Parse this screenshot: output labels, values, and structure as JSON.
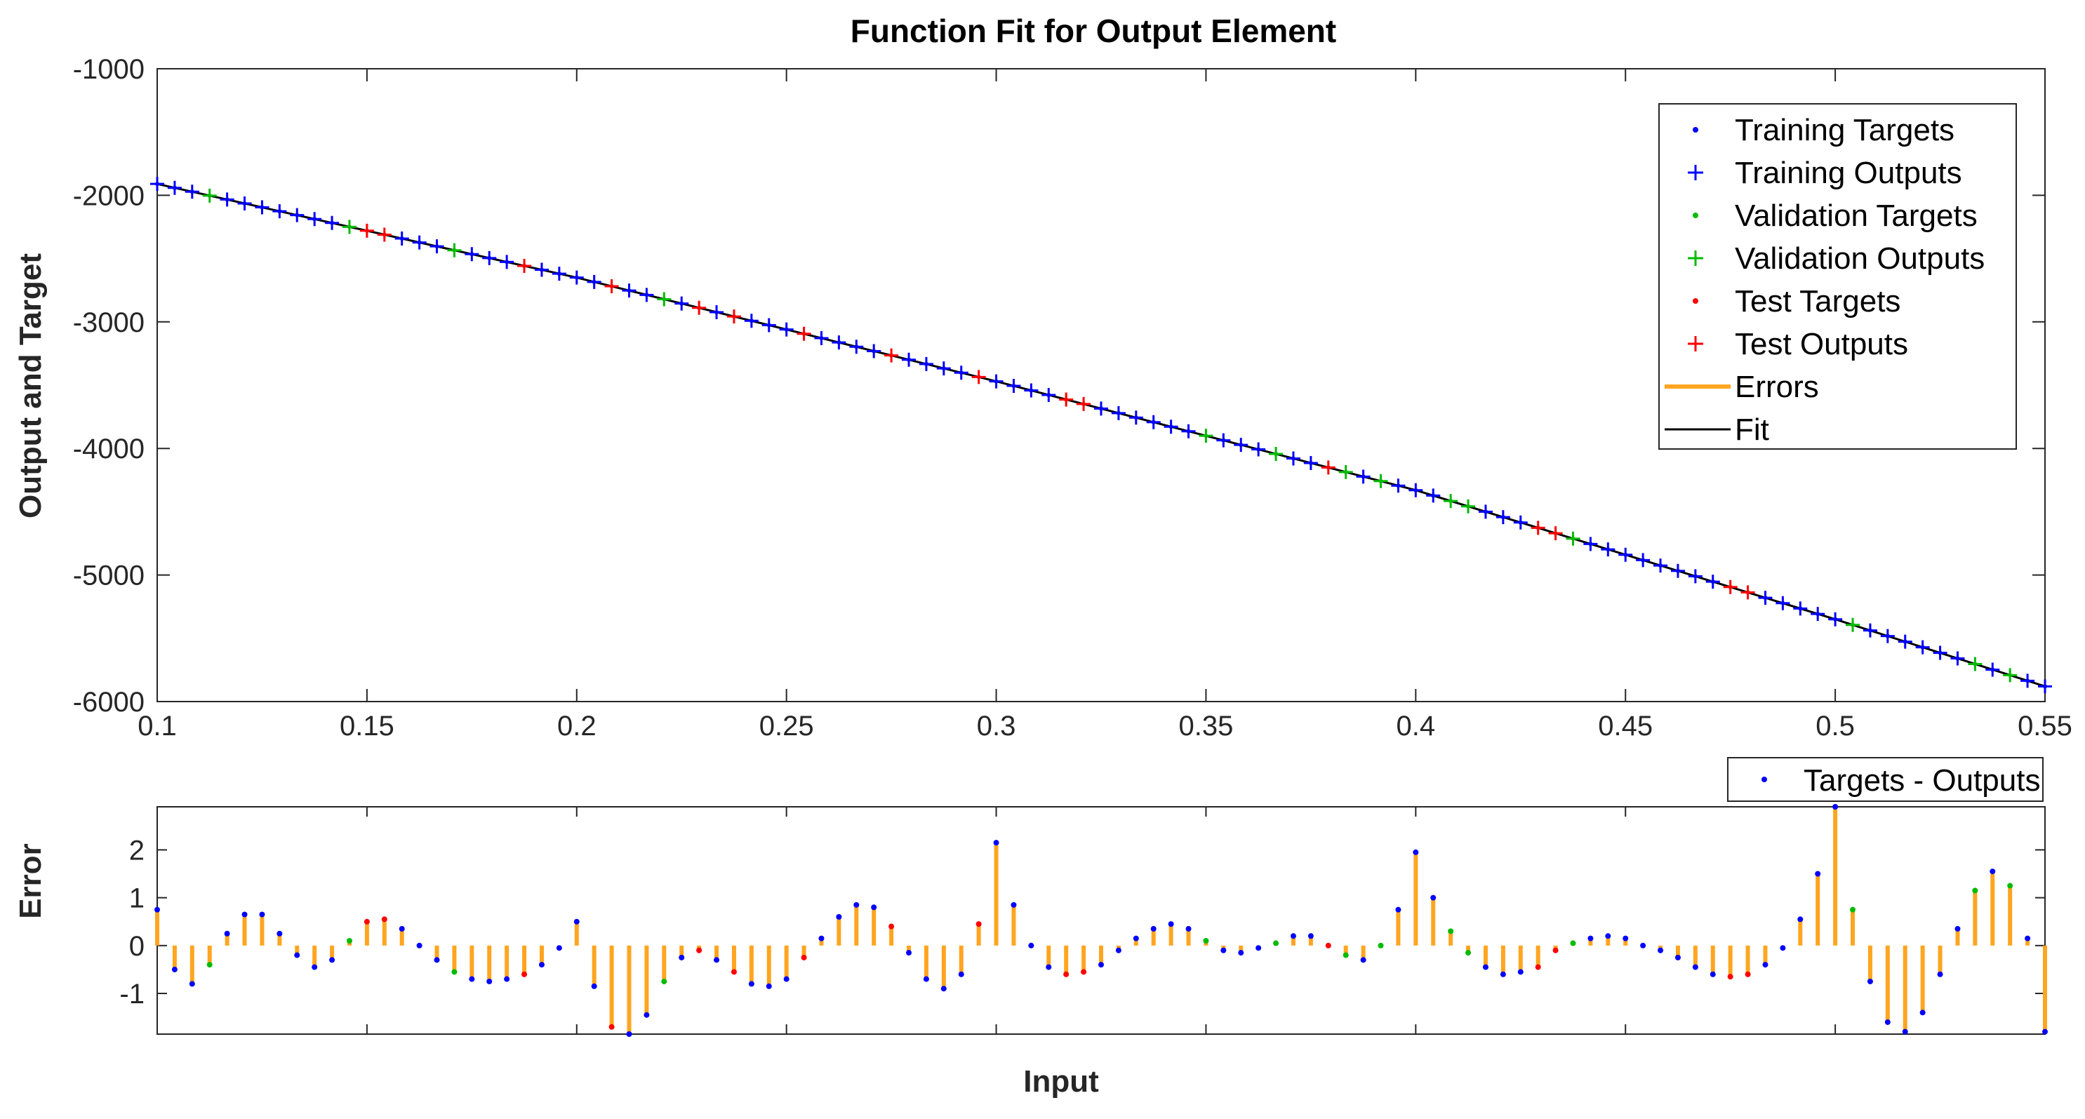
{
  "colors": {
    "training": "#0000ff",
    "validation": "#00bb00",
    "test": "#ff0000",
    "errors": "#ffa520",
    "fit": "#000000",
    "axes": "#262626"
  },
  "chart_data": [
    {
      "type": "line",
      "title": "Function Fit for Output Element",
      "xlabel": "",
      "ylabel": "Output and Target",
      "xlim": [
        0.1,
        0.55
      ],
      "ylim": [
        -6000,
        -1000
      ],
      "xticks": [
        0.1,
        0.15,
        0.2,
        0.25,
        0.3,
        0.35,
        0.4,
        0.45,
        0.5,
        0.55
      ],
      "xtick_labels": [
        "0.1",
        "0.15",
        "0.2",
        "0.25",
        "0.3",
        "0.35",
        "0.4",
        "0.45",
        "0.5",
        "0.55"
      ],
      "yticks": [
        -1000,
        -2000,
        -3000,
        -4000,
        -5000,
        -6000
      ],
      "ytick_labels": [
        "-1000",
        "-2000",
        "-3000",
        "-4000",
        "-5000",
        "-6000"
      ],
      "legend_position": "top-right",
      "legend": [
        "Training Targets",
        "Training Outputs",
        "Validation Targets",
        "Validation Outputs",
        "Test Targets",
        "Test Outputs",
        "Errors",
        "Fit"
      ],
      "fit_line": {
        "name": "Fit",
        "x": [
          0.1,
          0.2,
          0.3,
          0.4,
          0.5,
          0.55
        ],
        "y": [
          -1910,
          -2650,
          -3470,
          -4330,
          -5350,
          -5880
        ]
      },
      "sample_x_range": [
        0.1,
        0.55
      ],
      "sample_count": 109,
      "validation_samples": [
        3,
        11,
        17,
        29,
        60,
        64,
        68,
        70,
        74,
        75,
        81,
        97,
        104,
        106
      ],
      "test_samples": [
        12,
        13,
        21,
        26,
        31,
        33,
        37,
        42,
        47,
        52,
        53,
        67,
        79,
        80,
        90,
        91
      ],
      "series": [
        {
          "name": "Training Targets",
          "marker": "dot"
        },
        {
          "name": "Training Outputs",
          "marker": "plus"
        },
        {
          "name": "Validation Targets",
          "marker": "dot"
        },
        {
          "name": "Validation Outputs",
          "marker": "plus"
        },
        {
          "name": "Test Targets",
          "marker": "dot"
        },
        {
          "name": "Test Outputs",
          "marker": "plus"
        }
      ]
    },
    {
      "type": "bar",
      "title": "",
      "xlabel": "Input",
      "ylabel": "Error",
      "ylim": [
        -1.85,
        2.9
      ],
      "yticks": [
        2,
        1,
        0,
        -1
      ],
      "ytick_labels": [
        "2",
        "1",
        "0",
        "-1"
      ],
      "legend_position": "top-right",
      "legend": [
        "Targets - Outputs"
      ],
      "series": [
        {
          "name": "Targets - Outputs",
          "values": [
            0.75,
            -0.5,
            -0.8,
            -0.4,
            0.25,
            0.65,
            0.65,
            0.25,
            -0.2,
            -0.45,
            -0.3,
            0.1,
            0.5,
            0.55,
            0.35,
            0.0,
            -0.3,
            -0.55,
            -0.7,
            -0.75,
            -0.7,
            -0.6,
            -0.4,
            -0.05,
            0.5,
            -0.85,
            -1.7,
            -1.85,
            -1.45,
            -0.75,
            -0.25,
            -0.1,
            -0.3,
            -0.55,
            -0.8,
            -0.85,
            -0.7,
            -0.25,
            0.15,
            0.6,
            0.85,
            0.8,
            0.4,
            -0.15,
            -0.7,
            -0.9,
            -0.6,
            0.45,
            2.15,
            0.85,
            0.0,
            -0.45,
            -0.6,
            -0.55,
            -0.4,
            -0.1,
            0.15,
            0.35,
            0.45,
            0.35,
            0.1,
            -0.1,
            -0.15,
            -0.05,
            0.05,
            0.2,
            0.2,
            0.0,
            -0.2,
            -0.3,
            0.0,
            0.75,
            1.95,
            1.0,
            0.3,
            -0.15,
            -0.45,
            -0.6,
            -0.55,
            -0.45,
            -0.1,
            0.05,
            0.15,
            0.2,
            0.15,
            0.0,
            -0.1,
            -0.25,
            -0.45,
            -0.6,
            -0.65,
            -0.6,
            -0.4,
            -0.05,
            0.55,
            1.5,
            2.9,
            0.75,
            -0.75,
            -1.6,
            -1.8,
            -1.4,
            -0.6,
            0.35,
            1.15,
            1.55,
            1.25,
            0.15,
            -1.8
          ]
        }
      ]
    }
  ]
}
